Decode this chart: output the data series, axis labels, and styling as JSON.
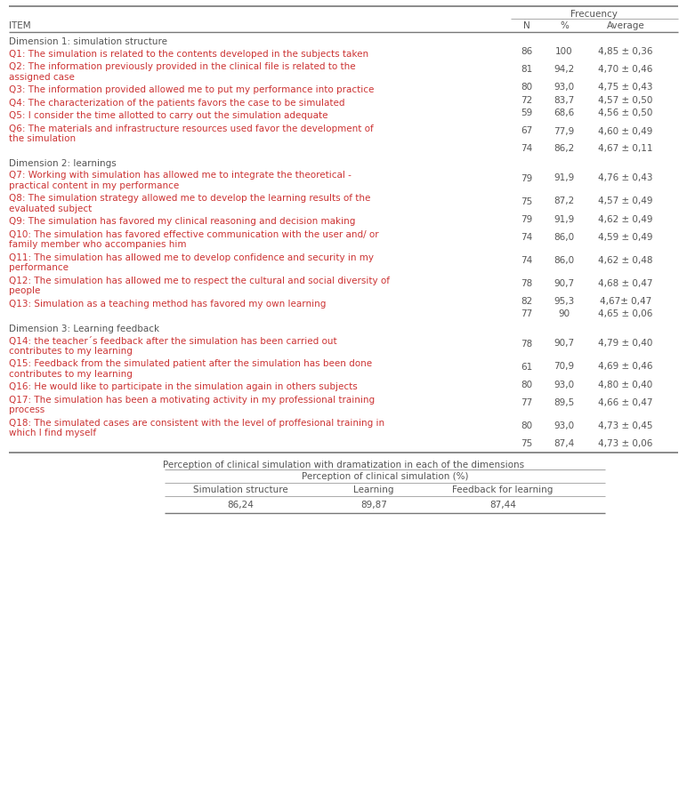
{
  "frequency_label": "Frecuency",
  "sub_headers": [
    "N",
    "%",
    "Average"
  ],
  "rows": [
    {
      "item": "Dimension 1: simulation structure",
      "type": "dimension",
      "n": "",
      "pct": "",
      "avg": ""
    },
    {
      "item": "Q1: The simulation is related to the contents developed in the subjects taken",
      "type": "data",
      "n": "86",
      "pct": "100",
      "avg": "4,85 ± 0,36",
      "lines": 1
    },
    {
      "item": "Q2: The information previously provided in the clinical file is related to the\nassigned case",
      "type": "data",
      "n": "81",
      "pct": "94,2",
      "avg": "4,70 ± 0,46",
      "lines": 2
    },
    {
      "item": "Q3: The information provided allowed me to put my performance into practice",
      "type": "data",
      "n": "80",
      "pct": "93,0",
      "avg": "4,75 ± 0,43",
      "lines": 1
    },
    {
      "item": "Q4: The characterization of the patients favors the case to be simulated",
      "type": "data",
      "n": "72",
      "pct": "83,7",
      "avg": "4,57 ± 0,50",
      "lines": 1
    },
    {
      "item": "Q5: I consider the time allotted to carry out the simulation adequate",
      "type": "data",
      "n": "59",
      "pct": "68,6",
      "avg": "4,56 ± 0,50",
      "lines": 1
    },
    {
      "item": "Q6: The materials and infrastructure resources used favor the development of\nthe simulation",
      "type": "data",
      "n": "67",
      "pct": "77,9",
      "avg": "4,60 ± 0,49",
      "lines": 2
    },
    {
      "item": "",
      "type": "subtotal",
      "n": "74",
      "pct": "86,2",
      "avg": "4,67 ± 0,11",
      "lines": 1
    },
    {
      "item": "Dimension 2: learnings",
      "type": "dimension",
      "n": "",
      "pct": "",
      "avg": ""
    },
    {
      "item": "Q7: Working with simulation has allowed me to integrate the theoretical -\npractical content in my performance",
      "type": "data",
      "n": "79",
      "pct": "91,9",
      "avg": "4,76 ± 0,43",
      "lines": 2
    },
    {
      "item": "Q8: The simulation strategy allowed me to develop the learning results of the\nevaluated subject",
      "type": "data",
      "n": "75",
      "pct": "87,2",
      "avg": "4,57 ± 0,49",
      "lines": 2
    },
    {
      "item": "Q9: The simulation has favored my clinical reasoning and decision making",
      "type": "data",
      "n": "79",
      "pct": "91,9",
      "avg": "4,62 ± 0,49",
      "lines": 1
    },
    {
      "item": "Q10: The simulation has favored effective communication with the user and/ or\nfamily member who accompanies him",
      "type": "data",
      "n": "74",
      "pct": "86,0",
      "avg": "4,59 ± 0,49",
      "lines": 2
    },
    {
      "item": "Q11: The simulation has allowed me to develop confidence and security in my\nperformance",
      "type": "data",
      "n": "74",
      "pct": "86,0",
      "avg": "4,62 ± 0,48",
      "lines": 2
    },
    {
      "item": "Q12: The simulation has allowed me to respect the cultural and social diversity of\npeople",
      "type": "data",
      "n": "78",
      "pct": "90,7",
      "avg": "4,68 ± 0,47",
      "lines": 2
    },
    {
      "item": "Q13: Simulation as a teaching method has favored my own learning",
      "type": "data",
      "n": "82",
      "pct": "95,3",
      "avg": "4,67± 0,47",
      "lines": 1
    },
    {
      "item": "",
      "type": "subtotal",
      "n": "77",
      "pct": "90",
      "avg": "4,65 ± 0,06",
      "lines": 1
    },
    {
      "item": "Dimension 3: Learning feedback",
      "type": "dimension",
      "n": "",
      "pct": "",
      "avg": ""
    },
    {
      "item": "Q14: the teacher´s feedback after the simulation has been carried out\ncontributes to my learning",
      "type": "data",
      "n": "78",
      "pct": "90,7",
      "avg": "4,79 ± 0,40",
      "lines": 2
    },
    {
      "item": "Q15: Feedback from the simulated patient after the simulation has been done\ncontributes to my learning",
      "type": "data",
      "n": "61",
      "pct": "70,9",
      "avg": "4,69 ± 0,46",
      "lines": 2
    },
    {
      "item": "Q16: He would like to participate in the simulation again in others subjects",
      "type": "data",
      "n": "80",
      "pct": "93,0",
      "avg": "4,80 ± 0,40",
      "lines": 1
    },
    {
      "item": "Q17: The simulation has been a motivating activity in my professional training\nprocess",
      "type": "data",
      "n": "77",
      "pct": "89,5",
      "avg": "4,66 ± 0,47",
      "lines": 2
    },
    {
      "item": "Q18: The simulated cases are consistent with the level of proffesional training in\nwhich I find myself",
      "type": "data",
      "n": "80",
      "pct": "93,0",
      "avg": "4,73 ± 0,45",
      "lines": 2
    },
    {
      "item": "",
      "type": "subtotal",
      "n": "75",
      "pct": "87,4",
      "avg": "4,73 ± 0,06",
      "lines": 1
    }
  ],
  "bottom_title": "Perception of clinical simulation with dramatization in each of the dimensions",
  "bottom_sub_header": "Perception of clinical simulation (%)",
  "bottom_cols": [
    "Simulation structure",
    "Learning",
    "Feedback for learning"
  ],
  "bottom_vals": [
    "86,24",
    "89,87",
    "87,44"
  ],
  "bg_color": "#ffffff",
  "dim_color": "#555555",
  "data_color": "#cc3333",
  "line_color": "#aaaaaa",
  "line_color_heavy": "#777777",
  "fs": 7.5,
  "lh": 11.5
}
